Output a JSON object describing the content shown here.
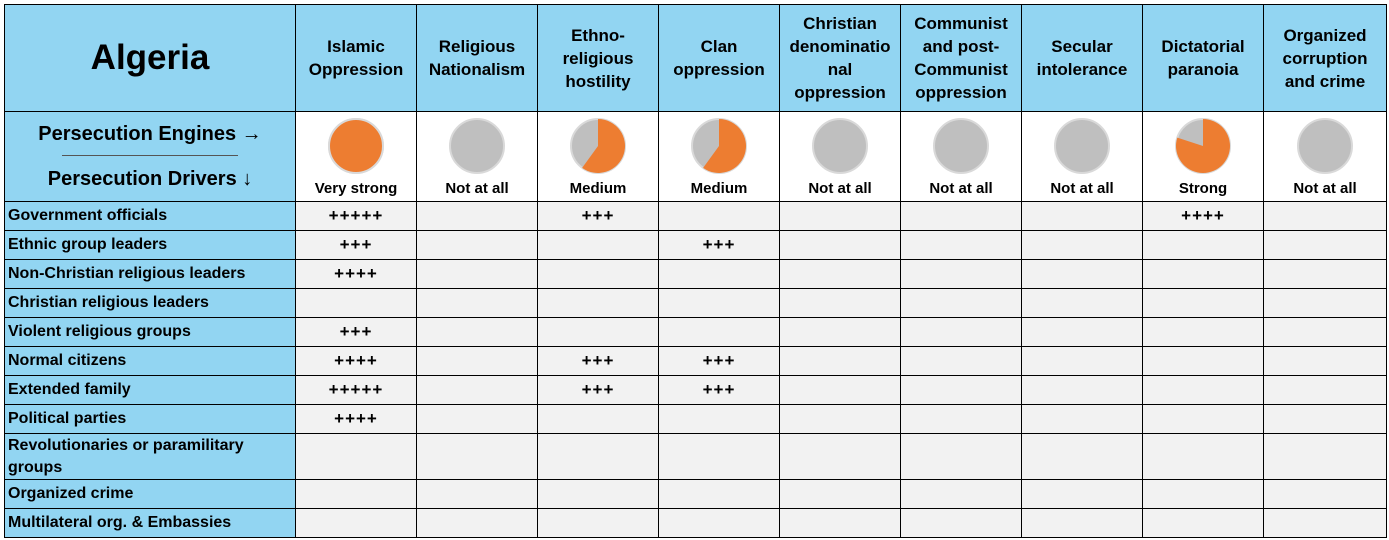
{
  "country": "Algeria",
  "legend": {
    "engines_label": "Persecution Engines →",
    "drivers_label": "Persecution Drivers ↓"
  },
  "colors": {
    "header_blue": "#92d5f2",
    "pie_orange": "#ed7d31",
    "pie_gray": "#bfbfbf",
    "cell_gray": "#f2f2f2"
  },
  "engines": [
    {
      "name": "Islamic\nOppression",
      "level": "Very strong",
      "strength": 1.0
    },
    {
      "name": "Religious\nNationalism",
      "level": "Not at all",
      "strength": 0.0
    },
    {
      "name": "Ethno-\nreligious\nhostility",
      "level": "Medium",
      "strength": 0.6
    },
    {
      "name": "Clan\noppression",
      "level": "Medium",
      "strength": 0.6
    },
    {
      "name": "Christian\ndenominatio\nnal\noppression",
      "level": "Not at all",
      "strength": 0.0
    },
    {
      "name": "Communist\nand post-\nCommunist\noppression",
      "level": "Not at all",
      "strength": 0.0
    },
    {
      "name": "Secular\nintolerance",
      "level": "Not at all",
      "strength": 0.0
    },
    {
      "name": "Dictatorial\nparanoia",
      "level": "Strong",
      "strength": 0.8
    },
    {
      "name": "Organized\ncorruption\nand crime",
      "level": "Not at all",
      "strength": 0.0
    }
  ],
  "drivers": [
    {
      "name": "Government officials",
      "values": [
        "+++++",
        "",
        "+++",
        "",
        "",
        "",
        "",
        "++++",
        ""
      ]
    },
    {
      "name": "Ethnic group leaders",
      "values": [
        "+++",
        "",
        "",
        "+++",
        "",
        "",
        "",
        "",
        ""
      ]
    },
    {
      "name": "Non-Christian religious leaders",
      "values": [
        "++++",
        "",
        "",
        "",
        "",
        "",
        "",
        "",
        ""
      ]
    },
    {
      "name": "Christian religious leaders",
      "values": [
        "",
        "",
        "",
        "",
        "",
        "",
        "",
        "",
        ""
      ]
    },
    {
      "name": "Violent religious groups",
      "values": [
        "+++",
        "",
        "",
        "",
        "",
        "",
        "",
        "",
        ""
      ]
    },
    {
      "name": "Normal citizens",
      "values": [
        "++++",
        "",
        "+++",
        "+++",
        "",
        "",
        "",
        "",
        ""
      ]
    },
    {
      "name": "Extended family",
      "values": [
        "+++++",
        "",
        "+++",
        "+++",
        "",
        "",
        "",
        "",
        ""
      ]
    },
    {
      "name": "Political parties",
      "values": [
        "++++",
        "",
        "",
        "",
        "",
        "",
        "",
        "",
        ""
      ]
    },
    {
      "name": "Revolutionaries or paramilitary groups",
      "values": [
        "",
        "",
        "",
        "",
        "",
        "",
        "",
        "",
        ""
      ]
    },
    {
      "name": "Organized crime",
      "values": [
        "",
        "",
        "",
        "",
        "",
        "",
        "",
        "",
        ""
      ]
    },
    {
      "name": "Multilateral org. & Embassies",
      "values": [
        "",
        "",
        "",
        "",
        "",
        "",
        "",
        "",
        ""
      ]
    }
  ]
}
